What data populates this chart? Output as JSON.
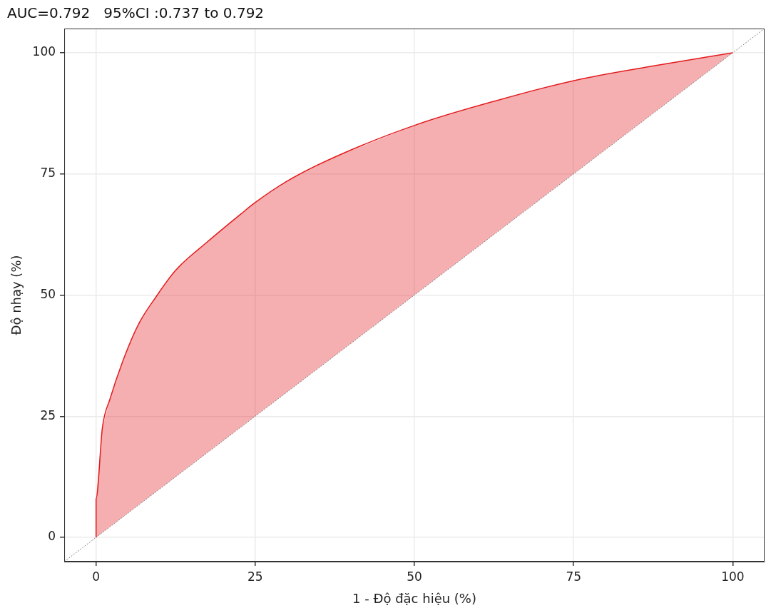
{
  "chart_data": {
    "type": "line",
    "title": "AUC=0.792   95%CI :0.737 to 0.792",
    "xlabel": "1 - Độ đặc hiệu (%)",
    "ylabel": "Độ nhạy (%)",
    "xlim": [
      -5,
      105
    ],
    "ylim": [
      -5,
      105
    ],
    "xticks": [
      0,
      25,
      50,
      75,
      100
    ],
    "yticks": [
      0,
      25,
      50,
      75,
      100
    ],
    "grid": true,
    "marker": "none",
    "series": [
      {
        "type": "area",
        "color": "#e31a1c",
        "x": [
          0,
          0,
          1,
          2.2,
          4.5,
          6.8,
          9.4,
          12.5,
          17.5,
          22.9,
          24.9,
          30,
          37.7,
          50.2,
          62.8,
          75.2,
          87.6,
          100
        ],
        "values": [
          0,
          8,
          22.7,
          28.6,
          37.4,
          44.3,
          49.6,
          55.1,
          61,
          66.9,
          69,
          73.5,
          78.6,
          85.1,
          90.1,
          94.3,
          97.3,
          100
        ]
      },
      {
        "color": "#808080",
        "line_style": "dotted",
        "x": [
          -5,
          105
        ],
        "values": [
          -5,
          105
        ]
      }
    ]
  }
}
